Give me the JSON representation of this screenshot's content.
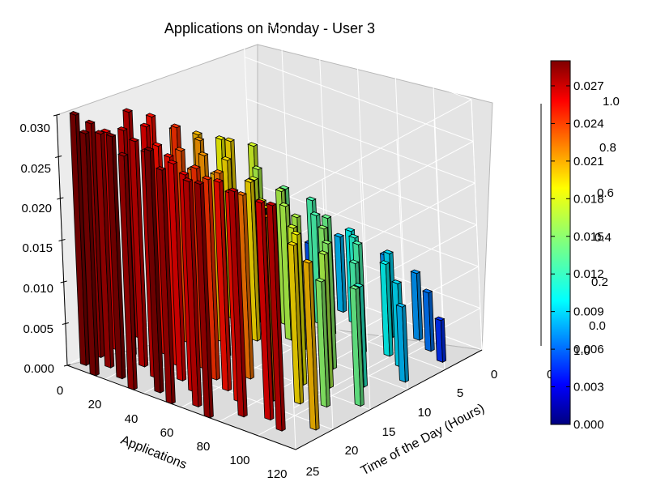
{
  "chart_data": {
    "type": "bar3d",
    "title": "Applications on Monday - User 3",
    "xlabel": "Applications",
    "ylabel": "Time of the Day (Hours)",
    "zlabel": "",
    "xlim": [
      0,
      120
    ],
    "ylim": [
      0,
      25
    ],
    "zlim": [
      0,
      0.03
    ],
    "x_ticks": [
      "0",
      "20",
      "40",
      "60",
      "80",
      "100",
      "120"
    ],
    "y_ticks": [
      "0",
      "5",
      "10",
      "15",
      "20",
      "25"
    ],
    "z_ticks": [
      "0.000",
      "0.005",
      "0.010",
      "0.015",
      "0.020",
      "0.025",
      "0.030"
    ],
    "colormap": "jet",
    "grid": true,
    "colorbar": {
      "ticks": [
        "0.000",
        "0.003",
        "0.006",
        "0.009",
        "0.012",
        "0.015",
        "0.018",
        "0.021",
        "0.024",
        "0.027"
      ],
      "min": 0,
      "max": 0.029
    },
    "stray_axis": {
      "ticks": [
        "0.0",
        "0.2",
        "0.4",
        "0.6",
        "0.8",
        "1.0"
      ],
      "edge_labels": [
        "0",
        "1.0"
      ]
    },
    "bars": [
      {
        "x": 3,
        "y": 1,
        "z": 0.03
      },
      {
        "x": 3,
        "y": 3,
        "z": 0.028
      },
      {
        "x": 3,
        "y": 5,
        "z": 0.026
      },
      {
        "x": 3,
        "y": 8,
        "z": 0.027
      },
      {
        "x": 3,
        "y": 11,
        "z": 0.025
      },
      {
        "x": 3,
        "y": 14,
        "z": 0.022
      },
      {
        "x": 3,
        "y": 17,
        "z": 0.02
      },
      {
        "x": 3,
        "y": 20,
        "z": 0.018
      },
      {
        "x": 12,
        "y": 0,
        "z": 0.029
      },
      {
        "x": 12,
        "y": 2,
        "z": 0.028
      },
      {
        "x": 12,
        "y": 5,
        "z": 0.027
      },
      {
        "x": 12,
        "y": 8,
        "z": 0.026
      },
      {
        "x": 12,
        "y": 12,
        "z": 0.024
      },
      {
        "x": 12,
        "y": 15,
        "z": 0.021
      },
      {
        "x": 12,
        "y": 19,
        "z": 0.019
      },
      {
        "x": 12,
        "y": 22,
        "z": 0.017
      },
      {
        "x": 22,
        "y": 1,
        "z": 0.029
      },
      {
        "x": 22,
        "y": 4,
        "z": 0.027
      },
      {
        "x": 22,
        "y": 7,
        "z": 0.025
      },
      {
        "x": 22,
        "y": 10,
        "z": 0.023
      },
      {
        "x": 22,
        "y": 13,
        "z": 0.021
      },
      {
        "x": 22,
        "y": 16,
        "z": 0.019
      },
      {
        "x": 22,
        "y": 20,
        "z": 0.016
      },
      {
        "x": 22,
        "y": 23,
        "z": 0.008
      },
      {
        "x": 32,
        "y": 0,
        "z": 0.028
      },
      {
        "x": 32,
        "y": 3,
        "z": 0.027
      },
      {
        "x": 32,
        "y": 6,
        "z": 0.025
      },
      {
        "x": 32,
        "y": 9,
        "z": 0.022
      },
      {
        "x": 32,
        "y": 12,
        "z": 0.02
      },
      {
        "x": 32,
        "y": 17,
        "z": 0.017
      },
      {
        "x": 32,
        "y": 21,
        "z": 0.014
      },
      {
        "x": 32,
        "y": 24,
        "z": 0.006
      },
      {
        "x": 42,
        "y": 1,
        "z": 0.029
      },
      {
        "x": 42,
        "y": 4,
        "z": 0.026
      },
      {
        "x": 42,
        "y": 7,
        "z": 0.024
      },
      {
        "x": 42,
        "y": 10,
        "z": 0.022
      },
      {
        "x": 42,
        "y": 14,
        "z": 0.019
      },
      {
        "x": 42,
        "y": 18,
        "z": 0.016
      },
      {
        "x": 42,
        "y": 22,
        "z": 0.013
      },
      {
        "x": 52,
        "y": 0,
        "z": 0.028
      },
      {
        "x": 52,
        "y": 3,
        "z": 0.026
      },
      {
        "x": 52,
        "y": 6,
        "z": 0.024
      },
      {
        "x": 52,
        "y": 9,
        "z": 0.021
      },
      {
        "x": 52,
        "y": 13,
        "z": 0.018
      },
      {
        "x": 52,
        "y": 16,
        "z": 0.016
      },
      {
        "x": 52,
        "y": 20,
        "z": 0.013
      },
      {
        "x": 52,
        "y": 23,
        "z": 0.009
      },
      {
        "x": 62,
        "y": 1,
        "z": 0.027
      },
      {
        "x": 62,
        "y": 5,
        "z": 0.025
      },
      {
        "x": 62,
        "y": 8,
        "z": 0.022
      },
      {
        "x": 62,
        "y": 11,
        "z": 0.019
      },
      {
        "x": 62,
        "y": 15,
        "z": 0.016
      },
      {
        "x": 62,
        "y": 19,
        "z": 0.014
      },
      {
        "x": 62,
        "y": 22,
        "z": 0.011
      },
      {
        "x": 72,
        "y": 0,
        "z": 0.028
      },
      {
        "x": 72,
        "y": 4,
        "z": 0.025
      },
      {
        "x": 72,
        "y": 8,
        "z": 0.021
      },
      {
        "x": 72,
        "y": 12,
        "z": 0.017
      },
      {
        "x": 72,
        "y": 16,
        "z": 0.015
      },
      {
        "x": 72,
        "y": 20,
        "z": 0.012
      },
      {
        "x": 72,
        "y": 24,
        "z": 0.008
      },
      {
        "x": 82,
        "y": 2,
        "z": 0.027
      },
      {
        "x": 82,
        "y": 6,
        "z": 0.022
      },
      {
        "x": 82,
        "y": 10,
        "z": 0.018
      },
      {
        "x": 82,
        "y": 14,
        "z": 0.015
      },
      {
        "x": 82,
        "y": 18,
        "z": 0.013
      },
      {
        "x": 82,
        "y": 22,
        "z": 0.01
      },
      {
        "x": 92,
        "y": 3,
        "z": 0.026
      },
      {
        "x": 92,
        "y": 7,
        "z": 0.019
      },
      {
        "x": 92,
        "y": 11,
        "z": 0.016
      },
      {
        "x": 92,
        "y": 15,
        "z": 0.013
      },
      {
        "x": 92,
        "y": 19,
        "z": 0.011
      },
      {
        "x": 92,
        "y": 23,
        "z": 0.008
      },
      {
        "x": 102,
        "y": 2,
        "z": 0.027
      },
      {
        "x": 102,
        "y": 8,
        "z": 0.015
      },
      {
        "x": 102,
        "y": 13,
        "z": 0.012
      },
      {
        "x": 102,
        "y": 18,
        "z": 0.01
      },
      {
        "x": 102,
        "y": 22,
        "z": 0.007
      },
      {
        "x": 112,
        "y": 4,
        "z": 0.02
      },
      {
        "x": 112,
        "y": 10,
        "z": 0.014
      },
      {
        "x": 112,
        "y": 16,
        "z": 0.009
      },
      {
        "x": 112,
        "y": 21,
        "z": 0.005
      }
    ]
  }
}
